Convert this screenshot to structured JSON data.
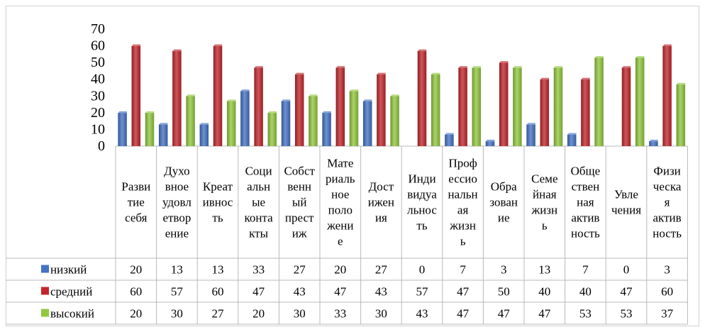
{
  "chart_data": {
    "type": "bar",
    "title": "",
    "xlabel": "",
    "ylabel": "",
    "ylim": [
      0,
      70
    ],
    "yticks": [
      0,
      10,
      20,
      30,
      40,
      50,
      60,
      70
    ],
    "grid": false,
    "legend": "data-table",
    "categories": [
      "Развитие себя",
      "Духовное удовлетворение",
      "Креативность",
      "Социальные контакты",
      "Собственный престиж",
      "Материальное положение",
      "Достижения",
      "Индивидуальность",
      "Профессиональная жизнь",
      "Образование",
      "Семейная жизнь",
      "Общественная активность",
      "Увлечения",
      "Физическая активность"
    ],
    "category_lines": [
      [
        "Разви",
        "тие",
        "себя"
      ],
      [
        "Духо",
        "вное",
        "удовл",
        "етвор",
        "ение"
      ],
      [
        "Креат",
        "ивнос",
        "ть"
      ],
      [
        "Соци",
        "альн",
        "ые",
        "конта",
        "кты"
      ],
      [
        "Собст",
        "венн",
        "ый",
        "прест",
        "иж"
      ],
      [
        "Мате",
        "риаль",
        "ное",
        "поло",
        "жени",
        "е"
      ],
      [
        "Дост",
        "ижен",
        "ия"
      ],
      [
        "Инди",
        "видуа",
        "льнос",
        "ть"
      ],
      [
        "Проф",
        "ессио",
        "нальн",
        "ая",
        "жизн",
        "ь"
      ],
      [
        "Обра",
        "зован",
        "ие"
      ],
      [
        "Семе",
        "йная",
        "жизн",
        "ь"
      ],
      [
        "Обще",
        "ствен",
        "ная",
        "актив",
        "ность"
      ],
      [
        "Увле",
        "чения"
      ],
      [
        "Физи",
        "ческа",
        "я",
        "актив",
        "ность"
      ]
    ],
    "series": [
      {
        "name": "низкий",
        "color": "#4472C4",
        "values": [
          20,
          13,
          13,
          33,
          27,
          20,
          27,
          0,
          7,
          3,
          13,
          7,
          0,
          3
        ]
      },
      {
        "name": "средний",
        "color": "#C0262C",
        "values": [
          60,
          57,
          60,
          47,
          43,
          47,
          43,
          57,
          47,
          50,
          40,
          40,
          47,
          60
        ]
      },
      {
        "name": "высокий",
        "color": "#92C83E",
        "values": [
          20,
          30,
          27,
          20,
          30,
          33,
          30,
          43,
          47,
          47,
          47,
          53,
          53,
          37
        ]
      }
    ]
  }
}
